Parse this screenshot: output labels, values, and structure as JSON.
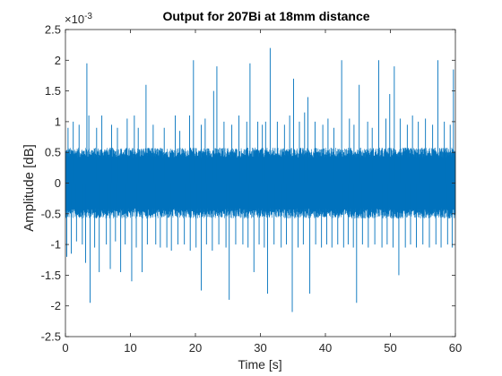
{
  "chart_data": {
    "type": "line",
    "title": "Output for 207Bi at 18mm distance",
    "xlabel": "Time [s]",
    "ylabel": "Amplitude [dB]",
    "exponent_label": "×10",
    "exponent_power": "-3",
    "xlim": [
      0,
      60
    ],
    "ylim": [
      -2.5,
      2.5
    ],
    "x_ticks": [
      "0",
      "10",
      "20",
      "30",
      "40",
      "50",
      "60"
    ],
    "y_ticks": [
      "-2.5",
      "-2",
      "-1.5",
      "-1",
      "-0.5",
      "0",
      "0.5",
      "1",
      "1.5",
      "2",
      "2.5"
    ],
    "y_scale_factor": 0.001,
    "grid": false,
    "series_color": "#0072BD",
    "noise_band": {
      "upper": 0.55,
      "lower": -0.55
    },
    "positive_spikes": [
      [
        0.4,
        0.9
      ],
      [
        1.2,
        1.0
      ],
      [
        2.1,
        0.95
      ],
      [
        3.3,
        1.95
      ],
      [
        3.6,
        1.1
      ],
      [
        4.8,
        0.9
      ],
      [
        5.6,
        1.1
      ],
      [
        7.1,
        0.95
      ],
      [
        8.0,
        0.9
      ],
      [
        9.5,
        1.05
      ],
      [
        10.6,
        1.1
      ],
      [
        11.2,
        0.9
      ],
      [
        12.4,
        1.6
      ],
      [
        13.5,
        0.95
      ],
      [
        15.2,
        0.9
      ],
      [
        16.9,
        1.1
      ],
      [
        17.6,
        0.85
      ],
      [
        19.1,
        1.1
      ],
      [
        19.7,
        2.0
      ],
      [
        20.9,
        0.95
      ],
      [
        21.5,
        1.05
      ],
      [
        22.8,
        1.5
      ],
      [
        23.3,
        1.9
      ],
      [
        24.4,
        1.0
      ],
      [
        25.6,
        0.95
      ],
      [
        26.7,
        1.1
      ],
      [
        27.9,
        1.0
      ],
      [
        28.4,
        1.95
      ],
      [
        29.6,
        1.0
      ],
      [
        30.3,
        0.95
      ],
      [
        30.8,
        1.0
      ],
      [
        31.5,
        2.2
      ],
      [
        32.6,
        1.0
      ],
      [
        33.7,
        0.95
      ],
      [
        34.5,
        1.1
      ],
      [
        35.1,
        1.7
      ],
      [
        36.0,
        1.0
      ],
      [
        36.8,
        1.15
      ],
      [
        37.3,
        1.4
      ],
      [
        38.4,
        1.0
      ],
      [
        39.6,
        0.95
      ],
      [
        40.4,
        1.05
      ],
      [
        41.3,
        0.9
      ],
      [
        42.5,
        2.0
      ],
      [
        43.7,
        1.05
      ],
      [
        44.4,
        0.95
      ],
      [
        45.2,
        1.6
      ],
      [
        46.5,
        1.0
      ],
      [
        47.2,
        0.9
      ],
      [
        48.2,
        2.0
      ],
      [
        49.3,
        1.05
      ],
      [
        49.9,
        1.45
      ],
      [
        50.6,
        1.9
      ],
      [
        51.5,
        1.05
      ],
      [
        52.6,
        0.95
      ],
      [
        53.4,
        1.1
      ],
      [
        54.3,
        1.0
      ],
      [
        55.4,
        1.05
      ],
      [
        56.5,
        0.95
      ],
      [
        57.3,
        2.0
      ],
      [
        58.3,
        1.0
      ],
      [
        59.2,
        0.95
      ],
      [
        59.7,
        1.85
      ]
    ],
    "negative_spikes": [
      [
        0.2,
        -1.2
      ],
      [
        0.9,
        -1.15
      ],
      [
        1.7,
        -0.95
      ],
      [
        2.6,
        -1.0
      ],
      [
        3.1,
        -1.3
      ],
      [
        3.8,
        -1.95
      ],
      [
        4.5,
        -1.05
      ],
      [
        5.2,
        -1.45
      ],
      [
        6.3,
        -1.0
      ],
      [
        6.9,
        -1.4
      ],
      [
        7.7,
        -0.95
      ],
      [
        8.5,
        -1.45
      ],
      [
        9.2,
        -1.0
      ],
      [
        10.2,
        -1.6
      ],
      [
        10.9,
        -1.05
      ],
      [
        11.8,
        -1.45
      ],
      [
        12.6,
        -1.0
      ],
      [
        13.9,
        -1.0
      ],
      [
        14.6,
        -1.05
      ],
      [
        15.6,
        -1.05
      ],
      [
        16.3,
        -1.1
      ],
      [
        17.3,
        -1.0
      ],
      [
        18.3,
        -1.0
      ],
      [
        19.2,
        -1.1
      ],
      [
        20.1,
        -1.05
      ],
      [
        20.9,
        -1.75
      ],
      [
        21.7,
        -1.0
      ],
      [
        22.6,
        -1.1
      ],
      [
        23.6,
        -1.0
      ],
      [
        24.7,
        -1.05
      ],
      [
        25.2,
        -1.9
      ],
      [
        26.2,
        -1.0
      ],
      [
        27.3,
        -1.0
      ],
      [
        28.1,
        -1.05
      ],
      [
        29.0,
        -1.45
      ],
      [
        29.8,
        -1.0
      ],
      [
        30.6,
        -1.05
      ],
      [
        31.1,
        -1.8
      ],
      [
        32.1,
        -1.0
      ],
      [
        33.2,
        -1.05
      ],
      [
        34.0,
        -1.0
      ],
      [
        34.9,
        -2.1
      ],
      [
        35.8,
        -1.05
      ],
      [
        36.6,
        -1.0
      ],
      [
        37.6,
        -1.8
      ],
      [
        38.5,
        -1.0
      ],
      [
        39.4,
        -1.05
      ],
      [
        40.2,
        -1.0
      ],
      [
        41.0,
        -1.05
      ],
      [
        41.9,
        -1.0
      ],
      [
        42.8,
        -1.05
      ],
      [
        43.5,
        -1.0
      ],
      [
        44.3,
        -1.05
      ],
      [
        44.8,
        -1.95
      ],
      [
        45.7,
        -1.0
      ],
      [
        46.6,
        -1.05
      ],
      [
        47.6,
        -1.0
      ],
      [
        48.7,
        -1.05
      ],
      [
        49.5,
        -1.0
      ],
      [
        50.4,
        -1.05
      ],
      [
        51.3,
        -1.5
      ],
      [
        52.3,
        -1.05
      ],
      [
        53.1,
        -1.0
      ],
      [
        54.0,
        -1.05
      ],
      [
        55.0,
        -1.0
      ],
      [
        56.0,
        -1.05
      ],
      [
        57.0,
        -1.0
      ],
      [
        57.8,
        -1.05
      ],
      [
        58.8,
        -1.0
      ],
      [
        59.5,
        -1.05
      ]
    ]
  }
}
